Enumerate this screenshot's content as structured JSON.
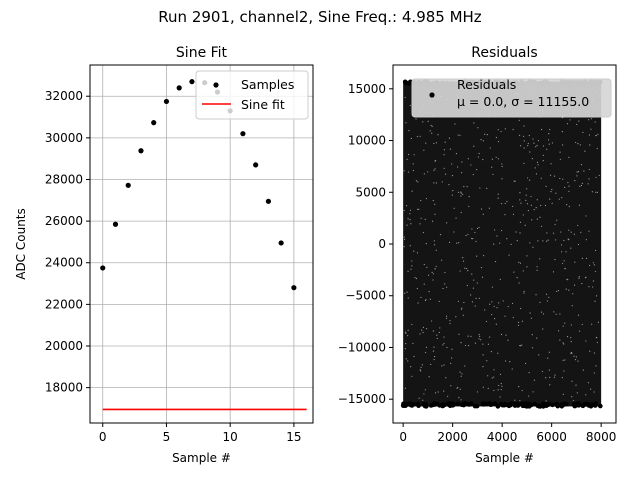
{
  "suptitle": "Run 2901, channel2, Sine Freq.: 4.985 MHz",
  "chart_data": [
    {
      "type": "scatter",
      "title": "Sine Fit",
      "xlabel": "Sample #",
      "ylabel": "ADC Counts",
      "xlim": [
        -1,
        16.5
      ],
      "ylim": [
        16300,
        33500
      ],
      "grid": true,
      "xticks": [
        0,
        5,
        10,
        15
      ],
      "yticks": [
        18000,
        20000,
        22000,
        24000,
        26000,
        28000,
        30000,
        32000
      ],
      "legend": {
        "placement": "top-right",
        "entries": [
          "Samples",
          "Sine fit"
        ]
      },
      "series": [
        {
          "name": "Samples",
          "kind": "points",
          "color": "#000000",
          "x": [
            0,
            1,
            2,
            3,
            4,
            5,
            6,
            7,
            8,
            9,
            10,
            11,
            12,
            13,
            14,
            15
          ],
          "y": [
            23750,
            25850,
            27720,
            29380,
            30730,
            31750,
            32400,
            32700,
            32650,
            32200,
            31300,
            30200,
            28700,
            26950,
            24950,
            22800
          ]
        },
        {
          "name": "Sine fit",
          "kind": "line",
          "color": "#ff0000",
          "x": [
            0,
            16
          ],
          "y": [
            16950,
            16950
          ]
        }
      ]
    },
    {
      "type": "scatter",
      "title": "Residuals",
      "xlabel": "Sample #",
      "ylabel": "",
      "xlim": [
        -410,
        8600
      ],
      "ylim": [
        -17300,
        17300
      ],
      "grid": false,
      "xticks": [
        0,
        2000,
        4000,
        6000,
        8000
      ],
      "yticks": [
        -15000,
        -10000,
        -5000,
        0,
        5000,
        10000,
        15000
      ],
      "legend": {
        "placement": "top-right",
        "entries": [
          "Residuals",
          "μ = 0.0, σ = 11155.0"
        ]
      },
      "series": [
        {
          "name": "Residuals",
          "kind": "dense-points",
          "color": "#000000",
          "x_range": [
            0,
            8000
          ],
          "y_range": [
            -15700,
            15700
          ],
          "mu": 0.0,
          "sigma": 11155.0
        }
      ]
    }
  ]
}
